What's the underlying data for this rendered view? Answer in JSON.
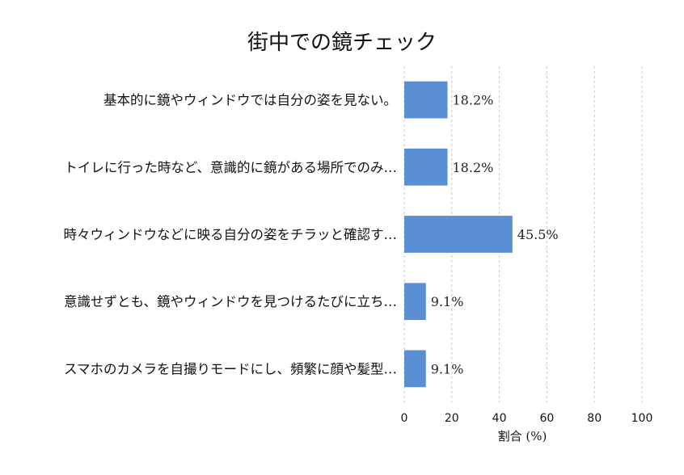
{
  "chart_data": {
    "type": "bar",
    "orientation": "horizontal",
    "title": "街中での鏡チェック",
    "xlabel": "割合 (%)",
    "ylabel": "",
    "xlim": [
      0,
      100
    ],
    "xticks": [
      0,
      20,
      40,
      60,
      80,
      100
    ],
    "grid": "x-dashed",
    "color": "#5b8fd3",
    "categories": [
      "基本的に鏡やウィンドウでは自分の姿を見ない。",
      "トイレに行った時など、意識的に鏡がある場所でのみ…",
      "時々ウィンドウなどに映る自分の姿をチラッと確認す…",
      "意識せずとも、鏡やウィンドウを見つけるたびに立ち…",
      "スマホのカメラを自撮りモードにし、頻繁に顔や髪型…"
    ],
    "values": [
      18.2,
      18.2,
      45.5,
      9.1,
      9.1
    ],
    "data_labels": [
      "18.2%",
      "18.2%",
      "45.5%",
      "9.1%",
      "9.1%"
    ]
  }
}
